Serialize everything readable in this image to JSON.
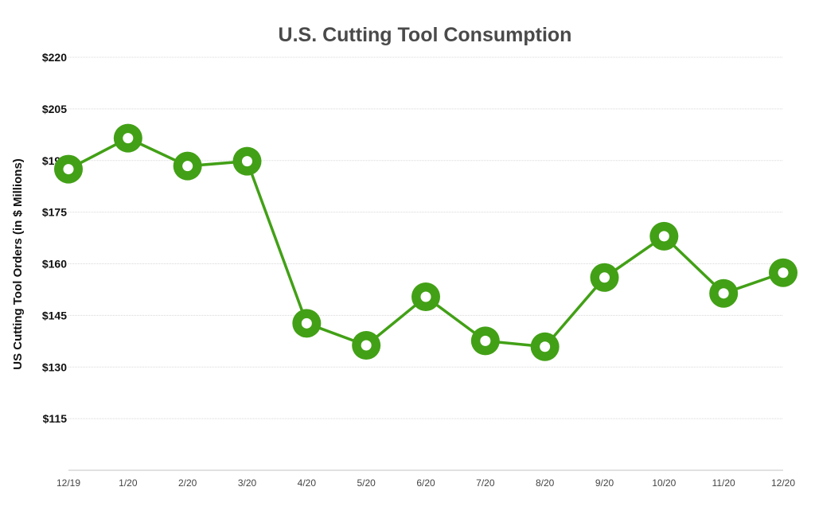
{
  "chart_data": {
    "type": "line",
    "title": "U.S. Cutting Tool Consumption",
    "xlabel": "",
    "ylabel": "US Cutting Tool Orders (in $ Millions)",
    "categories": [
      "12/19",
      "1/20",
      "2/20",
      "3/20",
      "4/20",
      "5/20",
      "6/20",
      "7/20",
      "8/20",
      "9/20",
      "10/20",
      "11/20",
      "12/20"
    ],
    "series": [
      {
        "name": "US Cutting Tool Orders",
        "color": "#42a016",
        "values": [
          187.5,
          196.5,
          188.4,
          189.8,
          142.7,
          136.3,
          150.4,
          137.6,
          135.9,
          156.0,
          168.0,
          151.4,
          157.4
        ]
      }
    ],
    "ylim": [
      100,
      220
    ],
    "yticks": [
      115,
      130,
      145,
      160,
      175,
      190,
      205,
      220
    ],
    "ytick_labels": [
      "$115",
      "$130",
      "$145",
      "$160",
      "$175",
      "$190",
      "$205",
      "$220"
    ],
    "grid": true,
    "legend": "none"
  }
}
